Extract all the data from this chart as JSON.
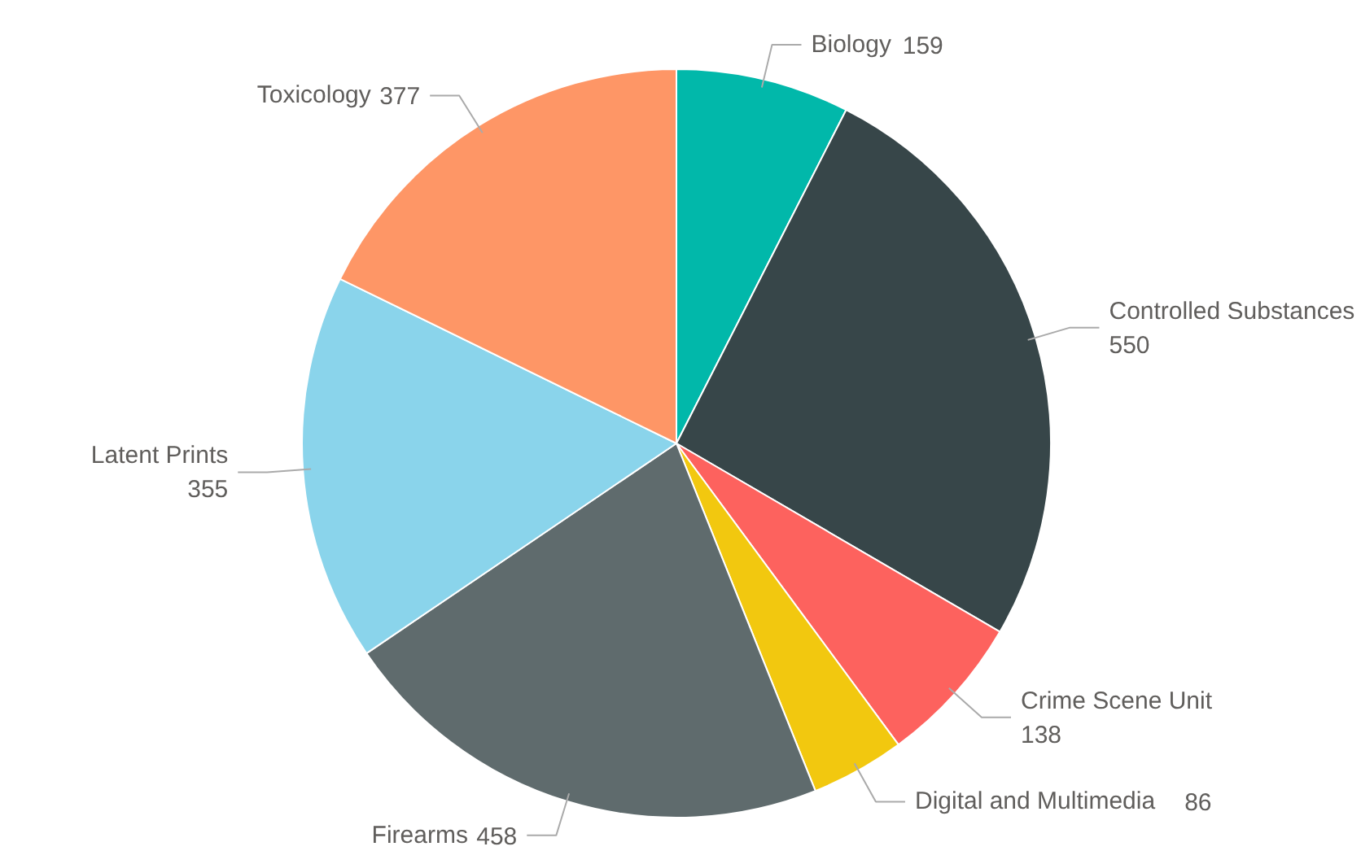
{
  "chart_data": {
    "type": "pie",
    "categories": [
      "Biology",
      "Controlled Substances",
      "Crime Scene Unit",
      "Digital and Multimedia",
      "Firearms",
      "Latent Prints",
      "Toxicology"
    ],
    "values": [
      159,
      550,
      138,
      86,
      458,
      355,
      377
    ],
    "colors": [
      "#01b8aa",
      "#374649",
      "#fd625e",
      "#f2c80f",
      "#5f6b6d",
      "#8ad4eb",
      "#fe9666"
    ],
    "data_labels": true
  }
}
